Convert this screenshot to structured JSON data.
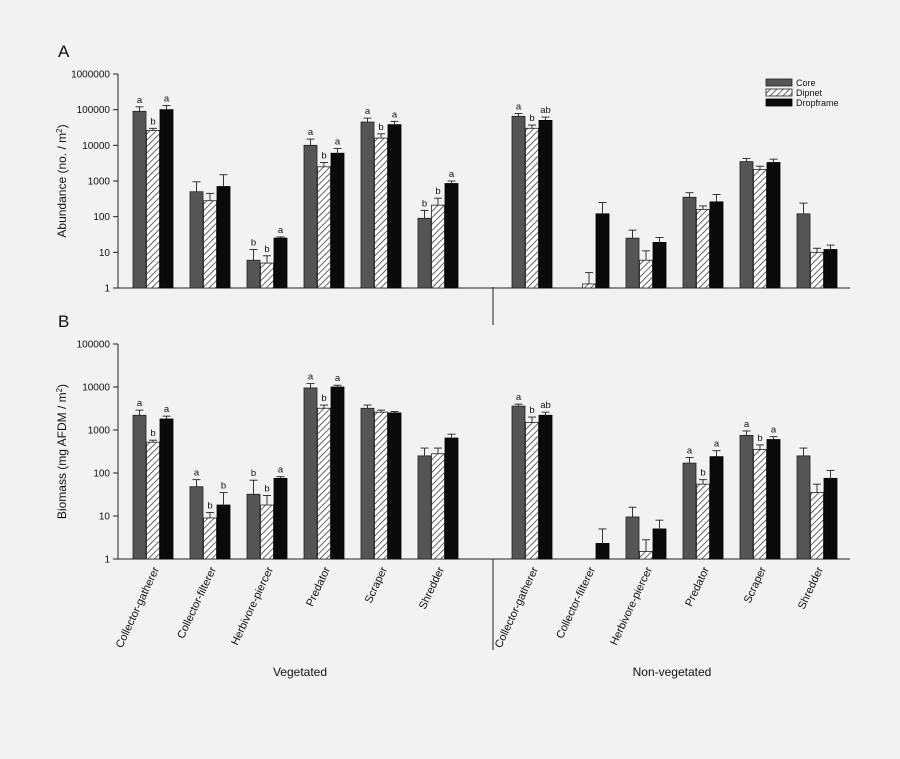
{
  "chart_data": [
    {
      "type": "bar",
      "panel": "A",
      "ylabel": "Abundance (no. / m",
      "ylabel_sup": "2",
      "ylabel_end": ")",
      "yscale": "log",
      "ylim": [
        1,
        1000000
      ],
      "yticks": [
        "1",
        "10",
        "100",
        "1000",
        "10000",
        "100000",
        "1000000"
      ],
      "categories": [
        "Collector-gatherer",
        "Collector-filterer",
        "Herbivore-piercer",
        "Predator",
        "Scraper",
        "Shredder"
      ],
      "groups": [
        "Vegetated",
        "Non-vegetated"
      ],
      "legend": {
        "position": "top-right",
        "entries": [
          "Core",
          "Dipnet",
          "Dropframe"
        ]
      },
      "series": [
        {
          "name": "Core",
          "vegetated": [
            90000,
            500,
            6,
            10000,
            45000,
            90
          ],
          "non_vegetated": [
            65000,
            null,
            25,
            350,
            3500,
            120
          ],
          "err_veg": [
            120000,
            950,
            12,
            15000,
            58000,
            150
          ],
          "err_non": [
            78000,
            null,
            42,
            470,
            4300,
            240
          ]
        },
        {
          "name": "Dipnet",
          "vegetated": [
            26000,
            280,
            5,
            2500,
            16000,
            210
          ],
          "non_vegetated": [
            30000,
            1.3,
            6,
            160,
            2100,
            10
          ],
          "err_veg": [
            30000,
            450,
            8,
            3300,
            21000,
            330
          ],
          "err_non": [
            37000,
            2.7,
            11,
            200,
            2600,
            13
          ]
        },
        {
          "name": "Dropframe",
          "vegetated": [
            100000,
            700,
            25,
            6000,
            38000,
            850
          ],
          "non_vegetated": [
            50000,
            120,
            19,
            260,
            3300,
            12
          ],
          "err_veg": [
            130000,
            1500,
            27,
            8200,
            47000,
            1000
          ],
          "err_non": [
            62000,
            250,
            26,
            420,
            4100,
            16
          ]
        }
      ],
      "annotations_veg": [
        [
          "a",
          "b",
          "a"
        ],
        [
          "",
          "",
          ""
        ],
        [
          "b",
          "b",
          "a"
        ],
        [
          "a",
          "b",
          "a"
        ],
        [
          "a",
          "b",
          "a"
        ],
        [
          "b",
          "b",
          "a"
        ]
      ],
      "annotations_non": [
        [
          "a",
          "b",
          "ab"
        ],
        [
          "",
          "",
          ""
        ],
        [
          "",
          "",
          ""
        ],
        [
          "",
          "",
          ""
        ],
        [
          "",
          "",
          ""
        ],
        [
          "",
          "",
          ""
        ]
      ]
    },
    {
      "type": "bar",
      "panel": "B",
      "ylabel": "Biomass (mg AFDM / m",
      "ylabel_sup": "2",
      "ylabel_end": ")",
      "yscale": "log",
      "ylim": [
        1,
        100000
      ],
      "yticks": [
        "1",
        "10",
        "100",
        "1000",
        "10000",
        "100000"
      ],
      "categories": [
        "Collector-gatherer",
        "Collector-filterer",
        "Herbivore-piercer",
        "Predator",
        "Scraper",
        "Shredder"
      ],
      "groups": [
        "Vegetated",
        "Non-vegetated"
      ],
      "series": [
        {
          "name": "Core",
          "vegetated": [
            2200,
            48,
            32,
            9500,
            3200,
            250
          ],
          "non_vegetated": [
            3600,
            null,
            9.5,
            170,
            750,
            250
          ],
          "err_veg": [
            2900,
            70,
            68,
            12000,
            3800,
            380
          ],
          "err_non": [
            4000,
            null,
            16,
            230,
            950,
            380
          ]
        },
        {
          "name": "Dipnet",
          "vegetated": [
            520,
            9,
            18,
            3200,
            2600,
            280
          ],
          "non_vegetated": [
            1500,
            null,
            1.5,
            55,
            350,
            35
          ],
          "err_veg": [
            580,
            12,
            30,
            3800,
            2900,
            380
          ],
          "err_non": [
            2000,
            null,
            2.8,
            70,
            450,
            55
          ]
        },
        {
          "name": "Dropframe",
          "vegetated": [
            1800,
            18,
            75,
            10000,
            2500,
            650
          ],
          "non_vegetated": [
            2200,
            2.3,
            5,
            240,
            600,
            75
          ],
          "err_veg": [
            2100,
            35,
            82,
            11000,
            2700,
            800
          ],
          "err_non": [
            2600,
            5,
            8,
            330,
            700,
            115
          ]
        }
      ],
      "annotations_veg": [
        [
          "a",
          "b",
          "a"
        ],
        [
          "a",
          "b",
          "b"
        ],
        [
          "b",
          "b",
          "a"
        ],
        [
          "a",
          "b",
          "a"
        ],
        [
          "",
          "",
          ""
        ],
        [
          "",
          "",
          ""
        ]
      ],
      "annotations_non": [
        [
          "a",
          "b",
          "ab"
        ],
        [
          "",
          "",
          ""
        ],
        [
          "",
          "",
          ""
        ],
        [
          "a",
          "b",
          "a"
        ],
        [
          "a",
          "b",
          "a"
        ],
        [
          "",
          "",
          ""
        ]
      ]
    }
  ]
}
